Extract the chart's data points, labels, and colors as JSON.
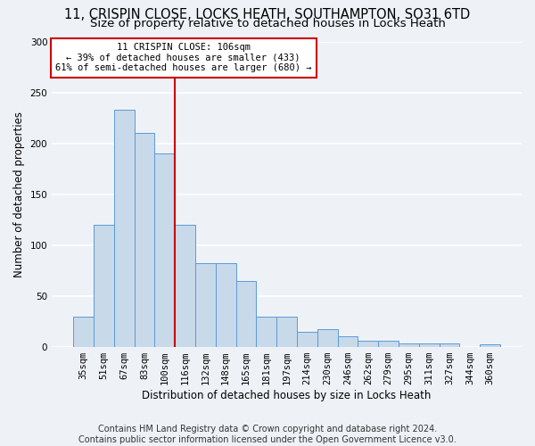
{
  "title_line1": "11, CRISPIN CLOSE, LOCKS HEATH, SOUTHAMPTON, SO31 6TD",
  "title_line2": "Size of property relative to detached houses in Locks Heath",
  "xlabel": "Distribution of detached houses by size in Locks Heath",
  "ylabel": "Number of detached properties",
  "footer_line1": "Contains HM Land Registry data © Crown copyright and database right 2024.",
  "footer_line2": "Contains public sector information licensed under the Open Government Licence v3.0.",
  "annotation_line1": "11 CRISPIN CLOSE: 106sqm",
  "annotation_line2": "← 39% of detached houses are smaller (433)",
  "annotation_line3": "61% of semi-detached houses are larger (680) →",
  "bar_labels": [
    "35sqm",
    "51sqm",
    "67sqm",
    "83sqm",
    "100sqm",
    "116sqm",
    "132sqm",
    "148sqm",
    "165sqm",
    "181sqm",
    "197sqm",
    "214sqm",
    "230sqm",
    "246sqm",
    "262sqm",
    "279sqm",
    "295sqm",
    "311sqm",
    "327sqm",
    "344sqm",
    "360sqm"
  ],
  "bar_values": [
    30,
    120,
    233,
    210,
    190,
    120,
    82,
    82,
    65,
    30,
    30,
    15,
    18,
    11,
    6,
    6,
    4,
    4,
    4,
    0,
    3
  ],
  "bar_color": "#c8d9ea",
  "bar_edge_color": "#5b9bd5",
  "vline_x": 4.5,
  "vline_color": "#cc0000",
  "annotation_box_color": "#cc0000",
  "ylim": [
    0,
    300
  ],
  "yticks": [
    0,
    50,
    100,
    150,
    200,
    250,
    300
  ],
  "bg_color": "#eef2f7",
  "grid_color": "#ffffff",
  "title_fontsize": 10.5,
  "subtitle_fontsize": 9.5,
  "axis_label_fontsize": 8.5,
  "tick_fontsize": 7.5,
  "footer_fontsize": 7.0
}
